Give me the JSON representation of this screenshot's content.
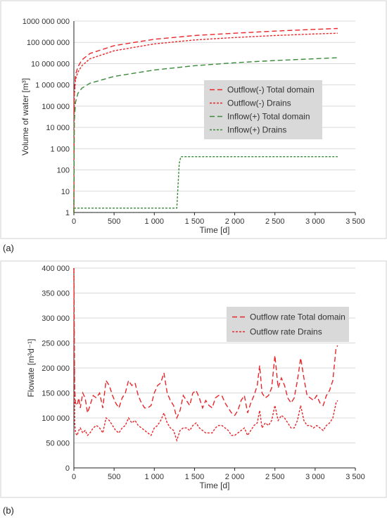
{
  "panels": {
    "a_label": "(a)",
    "b_label": "(b)"
  },
  "chart_data": [
    {
      "type": "line",
      "xlabel": "Time [d]",
      "ylabel": "Volume of water  [m³]",
      "yscale": "log",
      "xlim": [
        0,
        3500
      ],
      "ylim": [
        1,
        1000000000
      ],
      "x_ticks": [
        0,
        500,
        1000,
        1500,
        2000,
        2500,
        3000,
        3500
      ],
      "x_tick_labels": [
        "0",
        "500",
        "1 000",
        "1 500",
        "2 000",
        "2 500",
        "3 000",
        "3 500"
      ],
      "y_ticks": [
        1,
        10,
        100,
        1000,
        10000,
        100000,
        1000000,
        10000000,
        100000000,
        1000000000
      ],
      "y_tick_labels": [
        "1",
        "10",
        "100",
        "1 000",
        "10 000",
        "100 000",
        "1 000 000",
        "10 000 000",
        "100 000 000",
        "1000 000 000"
      ],
      "grid": "horizontal",
      "legend_position": "center-right",
      "series": [
        {
          "name": "Outflow(-) Total domain",
          "color": "#e8262a",
          "dash": "long",
          "x": [
            0,
            5,
            20,
            50,
            100,
            200,
            500,
            1000,
            1500,
            2000,
            2500,
            3000,
            3280
          ],
          "y": [
            1,
            500000,
            3000000,
            7000000,
            15000000,
            30000000,
            70000000,
            140000000,
            210000000,
            270000000,
            340000000,
            410000000,
            450000000
          ]
        },
        {
          "name": "Outflow(-) Drains",
          "color": "#e8262a",
          "dash": "short",
          "x": [
            0,
            5,
            20,
            50,
            100,
            200,
            500,
            1000,
            1500,
            2000,
            2500,
            3000,
            3280
          ],
          "y": [
            1,
            300000,
            1800000,
            4000000,
            8000000,
            17000000,
            40000000,
            85000000,
            130000000,
            170000000,
            210000000,
            250000000,
            270000000
          ]
        },
        {
          "name": "Inflow(+) Total domain",
          "color": "#3a8a3a",
          "dash": "long",
          "x": [
            0,
            5,
            20,
            50,
            100,
            200,
            500,
            1000,
            1500,
            2000,
            2500,
            3000,
            3280
          ],
          "y": [
            1,
            20000,
            150000,
            400000,
            700000,
            1200000,
            2500000,
            5000000,
            8000000,
            11000000,
            14000000,
            17000000,
            19000000
          ]
        },
        {
          "name": "Inflow(+) Drains",
          "color": "#3a8a3a",
          "dash": "short",
          "x": [
            0,
            1280,
            1310,
            1330,
            1400,
            2000,
            3000,
            3280
          ],
          "y": [
            1.6,
            1.6,
            200,
            420,
            420,
            420,
            420,
            420
          ]
        }
      ]
    },
    {
      "type": "line",
      "xlabel": "Time [d]",
      "ylabel": "Flowate [m³d⁻¹]",
      "xlim": [
        0,
        3500
      ],
      "ylim": [
        0,
        400000
      ],
      "x_ticks": [
        0,
        500,
        1000,
        1500,
        2000,
        2500,
        3000,
        3500
      ],
      "x_tick_labels": [
        "0",
        "500",
        "1 000",
        "1 500",
        "2 000",
        "2 500",
        "3 000",
        "3 500"
      ],
      "y_ticks": [
        0,
        50000,
        100000,
        150000,
        200000,
        250000,
        300000,
        350000,
        400000
      ],
      "y_tick_labels": [
        "0",
        "50 000",
        "100 000",
        "150 000",
        "200 000",
        "250 000",
        "300 000",
        "350 000",
        "400 000"
      ],
      "grid": "horizontal",
      "legend_position": "center-right",
      "series": [
        {
          "name": "Outflow rate Total domain",
          "color": "#e8262a",
          "dash": "long",
          "x": [
            0,
            10,
            20,
            40,
            60,
            80,
            110,
            140,
            170,
            200,
            240,
            280,
            320,
            360,
            400,
            440,
            480,
            520,
            560,
            600,
            640,
            680,
            720,
            760,
            800,
            840,
            880,
            920,
            960,
            1000,
            1040,
            1080,
            1120,
            1160,
            1200,
            1240,
            1280,
            1320,
            1360,
            1400,
            1440,
            1480,
            1520,
            1560,
            1600,
            1640,
            1680,
            1720,
            1760,
            1800,
            1840,
            1880,
            1920,
            1960,
            2000,
            2040,
            2080,
            2120,
            2160,
            2200,
            2240,
            2280,
            2310,
            2340,
            2380,
            2420,
            2460,
            2500,
            2540,
            2580,
            2620,
            2660,
            2700,
            2740,
            2780,
            2820,
            2860,
            2900,
            2940,
            2980,
            3020,
            3060,
            3100,
            3140,
            3180,
            3220,
            3260,
            3280
          ],
          "y": [
            400000,
            160000,
            130000,
            125000,
            140000,
            120000,
            150000,
            140000,
            110000,
            125000,
            145000,
            140000,
            150000,
            120000,
            175000,
            165000,
            145000,
            130000,
            120000,
            140000,
            150000,
            175000,
            165000,
            170000,
            145000,
            130000,
            120000,
            120000,
            125000,
            150000,
            165000,
            170000,
            190000,
            150000,
            135000,
            125000,
            100000,
            115000,
            145000,
            135000,
            125000,
            150000,
            155000,
            140000,
            120000,
            135000,
            125000,
            120000,
            140000,
            145000,
            145000,
            130000,
            120000,
            110000,
            105000,
            115000,
            135000,
            145000,
            110000,
            130000,
            145000,
            165000,
            205000,
            150000,
            140000,
            145000,
            160000,
            225000,
            160000,
            180000,
            165000,
            140000,
            130000,
            140000,
            175000,
            220000,
            180000,
            145000,
            140000,
            135000,
            145000,
            130000,
            125000,
            145000,
            155000,
            175000,
            240000,
            245000
          ]
        },
        {
          "name": "Outflow rate Drains",
          "color": "#e8262a",
          "dash": "short",
          "x": [
            0,
            10,
            20,
            40,
            60,
            80,
            110,
            140,
            170,
            200,
            240,
            280,
            320,
            360,
            400,
            440,
            480,
            520,
            560,
            600,
            640,
            680,
            720,
            760,
            800,
            840,
            880,
            920,
            960,
            1000,
            1040,
            1080,
            1120,
            1160,
            1200,
            1240,
            1280,
            1320,
            1360,
            1400,
            1440,
            1480,
            1520,
            1560,
            1600,
            1640,
            1680,
            1720,
            1760,
            1800,
            1840,
            1880,
            1920,
            1960,
            2000,
            2040,
            2080,
            2120,
            2160,
            2200,
            2240,
            2280,
            2310,
            2340,
            2380,
            2420,
            2460,
            2500,
            2540,
            2580,
            2620,
            2660,
            2700,
            2740,
            2780,
            2820,
            2860,
            2900,
            2940,
            2980,
            3020,
            3060,
            3100,
            3140,
            3180,
            3220,
            3260,
            3280
          ],
          "y": [
            400000,
            90000,
            70000,
            65000,
            75000,
            80000,
            70000,
            75000,
            65000,
            70000,
            80000,
            85000,
            80000,
            70000,
            100000,
            95000,
            85000,
            75000,
            70000,
            80000,
            85000,
            100000,
            90000,
            95000,
            85000,
            80000,
            75000,
            70000,
            65000,
            80000,
            85000,
            95000,
            110000,
            90000,
            80000,
            75000,
            55000,
            75000,
            80000,
            80000,
            75000,
            85000,
            90000,
            80000,
            75000,
            70000,
            70000,
            70000,
            80000,
            85000,
            85000,
            80000,
            75000,
            65000,
            65000,
            70000,
            75000,
            80000,
            65000,
            75000,
            85000,
            90000,
            115000,
            80000,
            90000,
            85000,
            95000,
            125000,
            95000,
            105000,
            100000,
            90000,
            80000,
            80000,
            95000,
            125000,
            95000,
            85000,
            85000,
            80000,
            85000,
            80000,
            75000,
            85000,
            90000,
            100000,
            130000,
            135000
          ]
        }
      ]
    }
  ]
}
